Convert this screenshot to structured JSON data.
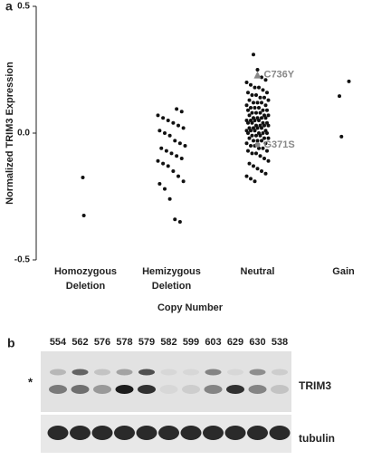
{
  "chart_data": {
    "type": "strip",
    "panel_label": "a",
    "y_label": "Normalized TRIM3 Expression",
    "x_label": "Copy Number",
    "categories": [
      [
        "Homozygous",
        "Deletion"
      ],
      [
        "Hemizygous",
        "Deletion"
      ],
      [
        "Neutral"
      ],
      [
        "Gain"
      ]
    ],
    "series": [
      {
        "name": "Homozygous Deletion",
        "color": "#111111",
        "values": [
          -0.175,
          -0.325
        ]
      },
      {
        "name": "Hemizygous Deletion",
        "color": "#111111",
        "values": [
          0.095,
          0.085,
          0.07,
          0.06,
          0.05,
          0.04,
          0.03,
          0.02,
          0.01,
          0.0,
          -0.01,
          -0.03,
          -0.04,
          -0.05,
          -0.06,
          -0.07,
          -0.08,
          -0.09,
          -0.1,
          -0.11,
          -0.12,
          -0.13,
          -0.15,
          -0.17,
          -0.19,
          -0.2,
          -0.22,
          -0.26,
          -0.34,
          -0.35
        ]
      },
      {
        "name": "Neutral",
        "color": "#111111",
        "values": [
          0.31,
          0.25,
          0.22,
          0.21,
          0.2,
          0.19,
          0.18,
          0.18,
          0.17,
          0.16,
          0.16,
          0.15,
          0.15,
          0.14,
          0.14,
          0.13,
          0.13,
          0.12,
          0.12,
          0.12,
          0.11,
          0.11,
          0.1,
          0.1,
          0.1,
          0.09,
          0.09,
          0.09,
          0.08,
          0.08,
          0.08,
          0.07,
          0.07,
          0.07,
          0.06,
          0.06,
          0.06,
          0.06,
          0.05,
          0.05,
          0.05,
          0.05,
          0.04,
          0.04,
          0.04,
          0.04,
          0.03,
          0.03,
          0.03,
          0.03,
          0.02,
          0.02,
          0.02,
          0.02,
          0.01,
          0.01,
          0.01,
          0.01,
          0.0,
          0.0,
          0.0,
          0.0,
          -0.01,
          -0.01,
          -0.01,
          -0.02,
          -0.02,
          -0.02,
          -0.03,
          -0.03,
          -0.03,
          -0.04,
          -0.04,
          -0.05,
          -0.05,
          -0.06,
          -0.06,
          -0.07,
          -0.07,
          -0.08,
          -0.08,
          -0.09,
          -0.1,
          -0.11,
          -0.12,
          -0.13,
          -0.14,
          -0.15,
          -0.16,
          -0.17,
          -0.18,
          -0.19
        ]
      },
      {
        "name": "Gain",
        "color": "#111111",
        "values": [
          0.204,
          0.146,
          -0.014
        ]
      }
    ],
    "annotations": [
      {
        "text": "C736Y",
        "x": "Neutral",
        "y": 0.23,
        "color": "#888888"
      },
      {
        "text": "G371S",
        "x": "Neutral",
        "y": -0.046,
        "color": "#888888"
      }
    ],
    "ylim": [
      -0.5,
      0.5
    ],
    "yticks": [
      -0.5,
      {
        "value": 0,
        "label": "0.0"
      },
      0.5
    ]
  },
  "blot": {
    "panel_label": "b",
    "lanes": [
      "554",
      "562",
      "576",
      "578",
      "579",
      "582",
      "599",
      "603",
      "629",
      "630",
      "538"
    ],
    "marker": "*",
    "rows": [
      "TRIM3",
      "tubulin"
    ]
  }
}
